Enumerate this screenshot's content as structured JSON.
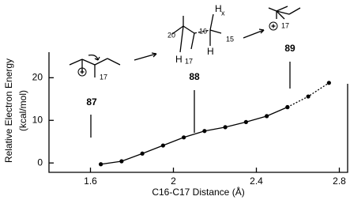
{
  "chart_data": {
    "type": "line",
    "x_label": "C16-C17  Distance  (Å)",
    "y_label": [
      "Relative Electron Energy",
      "(kcal/mol)"
    ],
    "x": [
      1.65,
      1.75,
      1.85,
      1.95,
      2.05,
      2.15,
      2.25,
      2.35,
      2.45,
      2.55,
      2.65,
      2.75
    ],
    "series": [
      {
        "color": "#000000",
        "style": "solid",
        "values": [
          -0.3,
          0.4,
          2.2,
          4.1,
          6.0,
          7.5,
          8.4,
          9.6,
          11.0,
          13.1,
          null,
          null
        ]
      },
      {
        "color": "#000000",
        "style": "dotted",
        "values": [
          null,
          null,
          null,
          null,
          null,
          null,
          null,
          null,
          null,
          13.1,
          15.6,
          18.8
        ]
      }
    ],
    "xlim": [
      1.4,
      2.84
    ],
    "xticks": [
      1.6,
      2.0,
      2.4,
      2.8
    ],
    "ylim": [
      -2.2,
      26
    ],
    "yticks": [
      0,
      10,
      20
    ],
    "annotations": {
      "structures": [
        "87",
        "88",
        "89"
      ],
      "atoms": [
        "17",
        "20",
        "16",
        "15",
        "H",
        "H",
        "H",
        "x",
        "17",
        "17"
      ]
    }
  }
}
